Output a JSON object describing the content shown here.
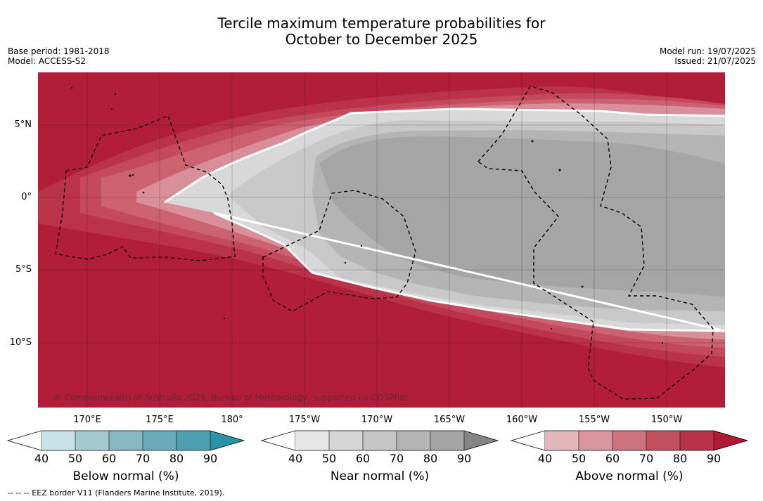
{
  "title": {
    "line1": "Tercile maximum temperature probabilities for",
    "line2": "October to December 2025"
  },
  "meta": {
    "base_period": "Base period: 1981-2018",
    "model": "Model: ACCESS-S2",
    "model_run": "Model run: 19/07/2025",
    "issued": "Issued: 21/07/2025"
  },
  "map": {
    "copyright": "© Commonwealth of Australia 2025, Bureau of Meteorology, supported by COSPPac",
    "lat_labels": [
      "5°N",
      "0°",
      "5°S",
      "10°S"
    ],
    "lon_labels": [
      "170°E",
      "175°E",
      "180°",
      "175°W",
      "170°W",
      "165°W",
      "160°W",
      "155°W",
      "150°W"
    ],
    "colors": {
      "above_max": "#b21e3a",
      "above_80": "#bb3349",
      "above_70": "#c4495c",
      "above_60": "#cc6270",
      "above_50": "#d88f99",
      "near_40": "#d8d8d8",
      "near_50": "#c8c8c8",
      "near_60": "#b4b4b4",
      "near_70": "#a5a5a5",
      "eez": "#000000",
      "boundary": "#ffffff"
    }
  },
  "legend": {
    "below": {
      "title": "Below normal (%)",
      "ticks": [
        "40",
        "50",
        "60",
        "70",
        "80",
        "90"
      ],
      "colors": [
        "#c9e2e9",
        "#a7c8cf",
        "#88b6c1",
        "#6aaab8",
        "#4ea0b1",
        "#2a93a8"
      ]
    },
    "near": {
      "title": "Near normal (%)",
      "ticks": [
        "40",
        "50",
        "60",
        "70",
        "80",
        "90"
      ],
      "colors": [
        "#e6e6e6",
        "#d6d6d6",
        "#c6c6c6",
        "#b4b4b4",
        "#a4a4a4",
        "#858585"
      ]
    },
    "above": {
      "title": "Above normal (%)",
      "ticks": [
        "40",
        "50",
        "60",
        "70",
        "80",
        "90"
      ],
      "colors": [
        "#e2b8bd",
        "#d8959d",
        "#cc737d",
        "#c2505f",
        "#b83249",
        "#b01a35"
      ]
    }
  },
  "footer": "--  --  -- EEZ border V11 (Flanders Marine Institute, 2019)."
}
